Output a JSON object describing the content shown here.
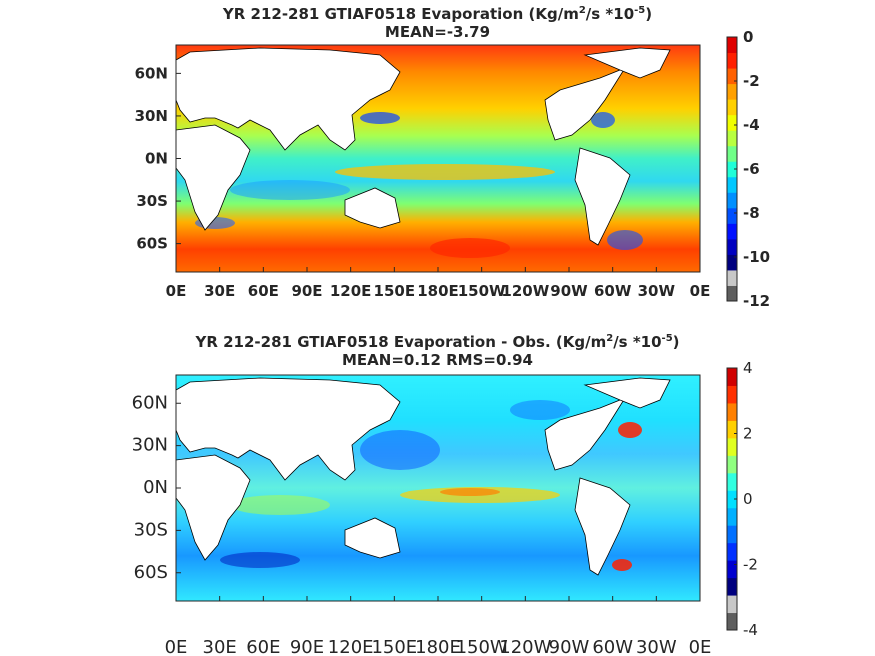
{
  "panels": [
    {
      "title_line1_pre": "YR 212-281 GTIAF0518  Evaporation (Kg/m",
      "title_line1_exp1": "2",
      "title_line1_mid": "/s *10",
      "title_line1_exp2": "-5",
      "title_line1_post": ")",
      "title_line2": "MEAN=-3.79",
      "colorbar": {
        "ticks": [
          "0",
          "-2",
          "-4",
          "-6",
          "-8",
          "-10",
          "-12"
        ],
        "range": [
          -12,
          0
        ],
        "colors": [
          "#5e5e5e",
          "#c8c8c8",
          "#00007f",
          "#0000c0",
          "#0010ff",
          "#0050ff",
          "#0090ff",
          "#00c8ff",
          "#20ffd8",
          "#70ff88",
          "#b8ff40",
          "#f0ff00",
          "#ffd000",
          "#ffa000",
          "#ff6000",
          "#ff2000",
          "#df0000"
        ]
      },
      "lat_ticks": [
        "60N",
        "30N",
        "0N",
        "30S",
        "60S"
      ],
      "lon_ticks": [
        "0E",
        "30E",
        "60E",
        "90E",
        "120E",
        "150E",
        "180E",
        "150W",
        "120W",
        "90W",
        "60W",
        "30W",
        "0E"
      ]
    },
    {
      "title_line1_pre": "YR 212-281 GTIAF0518 Evaporation - Obs. (Kg/m",
      "title_line1_exp1": "2",
      "title_line1_mid": "/s *10",
      "title_line1_exp2": "-5",
      "title_line1_post": ")",
      "title_line2": "MEAN=0.12   RMS=0.94",
      "colorbar": {
        "ticks": [
          "4",
          "2",
          "0",
          "-2",
          "-4"
        ],
        "range": [
          -4,
          4
        ],
        "colors": [
          "#5e5e5e",
          "#c8c8c8",
          "#00007f",
          "#0000d0",
          "#0030ff",
          "#0070ff",
          "#00b0ff",
          "#00e0ff",
          "#30ffe0",
          "#90ff80",
          "#e0ff20",
          "#ffd000",
          "#ff8000",
          "#ff3000",
          "#d00000"
        ]
      },
      "lat_ticks": [
        "60N",
        "30N",
        "0N",
        "30S",
        "60S"
      ],
      "lon_ticks": [
        "0E",
        "30E",
        "60E",
        "90E",
        "120E",
        "150E",
        "180E",
        "150W",
        "120W",
        "90W",
        "60W",
        "30W",
        "0E"
      ]
    }
  ],
  "chart_data": [
    {
      "type": "heatmap",
      "title": "YR 212-281 GTIAF0518  Evaporation (Kg/m^2/s *10^-5)",
      "subtitle": "MEAN=-3.79",
      "xlabel": "",
      "ylabel": "",
      "x_ticks": [
        "0E",
        "30E",
        "60E",
        "90E",
        "120E",
        "150E",
        "180E",
        "150W",
        "120W",
        "90W",
        "60W",
        "30W",
        "0E"
      ],
      "y_ticks": [
        "60N",
        "30N",
        "0N",
        "30S",
        "60S"
      ],
      "colorbar_range": [
        -12,
        0
      ],
      "colorbar_ticks": [
        0,
        -2,
        -4,
        -6,
        -8,
        -10,
        -12
      ]
    },
    {
      "type": "heatmap",
      "title": "YR 212-281 GTIAF0518 Evaporation - Obs. (Kg/m^2/s *10^-5)",
      "subtitle": "MEAN=0.12   RMS=0.94",
      "xlabel": "",
      "ylabel": "",
      "x_ticks": [
        "0E",
        "30E",
        "60E",
        "90E",
        "120E",
        "150E",
        "180E",
        "150W",
        "120W",
        "90W",
        "60W",
        "30W",
        "0E"
      ],
      "y_ticks": [
        "60N",
        "30N",
        "0N",
        "30S",
        "60S"
      ],
      "colorbar_range": [
        -4,
        4
      ],
      "colorbar_ticks": [
        4,
        2,
        0,
        -2,
        -4
      ]
    }
  ]
}
